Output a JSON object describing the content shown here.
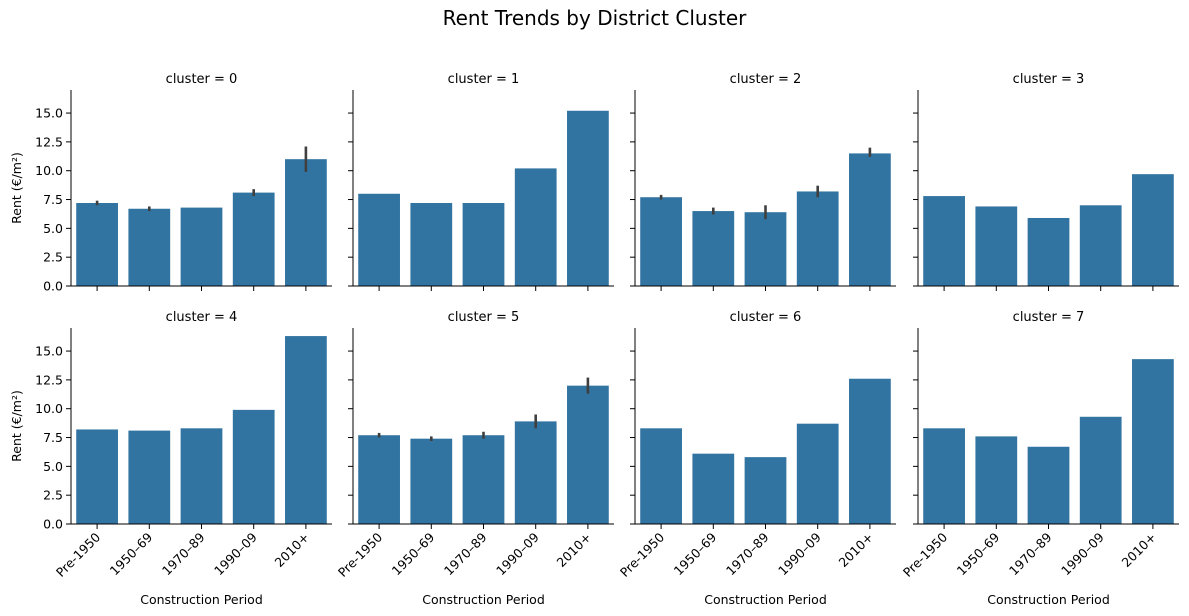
{
  "chart_data": {
    "type": "bar",
    "title": "Rent Trends by District Cluster",
    "xlabel": "Construction Period",
    "ylabel": "Rent (€/m²)",
    "ylim": [
      0,
      17
    ],
    "yticks": [
      0,
      2.5,
      5,
      7.5,
      10,
      12.5,
      15
    ],
    "ytick_labels": [
      "0.0",
      "2.5",
      "5.0",
      "7.5",
      "10.0",
      "12.5",
      "15.0"
    ],
    "categories": [
      "Pre-1950",
      "1950–69",
      "1970–89",
      "1990–09",
      "2010+"
    ],
    "bar_color": "#3274a1",
    "errbar_color": "#3f3f3f",
    "grid": false,
    "layout": {
      "rows": 2,
      "cols": 4
    },
    "facets": [
      {
        "title": "cluster = 0",
        "values": [
          7.2,
          6.7,
          6.8,
          8.1,
          11.0
        ],
        "errors": [
          [
            7.0,
            7.4
          ],
          [
            6.5,
            6.9
          ],
          null,
          [
            7.8,
            8.4
          ],
          [
            9.9,
            12.1
          ]
        ]
      },
      {
        "title": "cluster = 1",
        "values": [
          8.0,
          7.2,
          7.2,
          10.2,
          15.2
        ],
        "errors": [
          null,
          null,
          null,
          null,
          null
        ]
      },
      {
        "title": "cluster = 2",
        "values": [
          7.7,
          6.5,
          6.4,
          8.2,
          11.5
        ],
        "errors": [
          [
            7.5,
            7.9
          ],
          [
            6.2,
            6.8
          ],
          [
            5.8,
            7.0
          ],
          [
            7.7,
            8.7
          ],
          [
            11.2,
            12.0
          ]
        ]
      },
      {
        "title": "cluster = 3",
        "values": [
          7.8,
          6.9,
          5.9,
          7.0,
          9.7
        ],
        "errors": [
          null,
          null,
          null,
          null,
          null
        ]
      },
      {
        "title": "cluster = 4",
        "values": [
          8.2,
          8.1,
          8.3,
          9.9,
          16.3
        ],
        "errors": [
          null,
          null,
          null,
          null,
          null
        ]
      },
      {
        "title": "cluster = 5",
        "values": [
          7.7,
          7.4,
          7.7,
          8.9,
          12.0
        ],
        "errors": [
          [
            7.5,
            7.9
          ],
          [
            7.2,
            7.6
          ],
          [
            7.4,
            8.0
          ],
          [
            8.3,
            9.5
          ],
          [
            11.3,
            12.7
          ]
        ]
      },
      {
        "title": "cluster = 6",
        "values": [
          8.3,
          6.1,
          5.8,
          8.7,
          12.6
        ],
        "errors": [
          null,
          null,
          null,
          null,
          null
        ]
      },
      {
        "title": "cluster = 7",
        "values": [
          8.3,
          7.6,
          6.7,
          9.3,
          14.3
        ],
        "errors": [
          null,
          null,
          null,
          null,
          null
        ]
      }
    ]
  }
}
